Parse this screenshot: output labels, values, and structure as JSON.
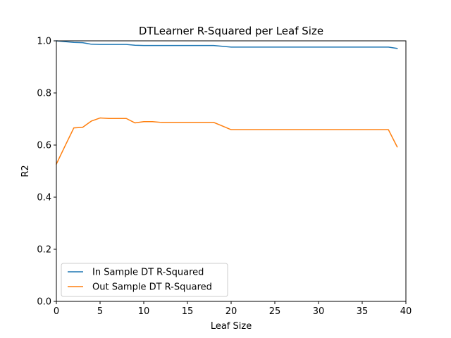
{
  "chart_data": {
    "type": "line",
    "title": "DTLearner R-Squared per Leaf Size",
    "xlabel": "Leaf Size",
    "ylabel": "R2",
    "xlim": [
      0,
      40
    ],
    "ylim": [
      0.0,
      1.0
    ],
    "xticks": [
      "0",
      "5",
      "10",
      "15",
      "20",
      "25",
      "30",
      "35",
      "40"
    ],
    "yticks": [
      "0.0",
      "0.2",
      "0.4",
      "0.6",
      "0.8",
      "1.0"
    ],
    "grid": false,
    "legend_position": "lower-left",
    "series": [
      {
        "name": "In Sample DT R-Squared",
        "color": "#1f77b4",
        "x": [
          0,
          1,
          2,
          3,
          4,
          5,
          6,
          7,
          8,
          9,
          10,
          11,
          12,
          13,
          14,
          15,
          16,
          17,
          18,
          19,
          20,
          21,
          22,
          23,
          24,
          25,
          26,
          27,
          28,
          29,
          30,
          31,
          32,
          33,
          34,
          35,
          36,
          37,
          38,
          39
        ],
        "values": [
          1.0,
          0.997,
          0.994,
          0.993,
          0.987,
          0.986,
          0.986,
          0.986,
          0.986,
          0.983,
          0.982,
          0.982,
          0.982,
          0.982,
          0.982,
          0.982,
          0.982,
          0.982,
          0.982,
          0.979,
          0.976,
          0.976,
          0.976,
          0.976,
          0.976,
          0.976,
          0.976,
          0.976,
          0.976,
          0.976,
          0.976,
          0.976,
          0.976,
          0.976,
          0.976,
          0.976,
          0.976,
          0.976,
          0.976,
          0.971
        ]
      },
      {
        "name": "Out Sample DT R-Squared",
        "color": "#ff7f0e",
        "x": [
          0,
          1,
          2,
          3,
          4,
          5,
          6,
          7,
          8,
          9,
          10,
          11,
          12,
          13,
          14,
          15,
          16,
          17,
          18,
          19,
          20,
          21,
          22,
          23,
          24,
          25,
          26,
          27,
          28,
          29,
          30,
          31,
          32,
          33,
          34,
          35,
          36,
          37,
          38,
          39
        ],
        "values": [
          0.527,
          0.597,
          0.666,
          0.668,
          0.692,
          0.704,
          0.702,
          0.702,
          0.702,
          0.685,
          0.69,
          0.69,
          0.687,
          0.687,
          0.687,
          0.687,
          0.687,
          0.687,
          0.687,
          0.673,
          0.659,
          0.659,
          0.659,
          0.659,
          0.659,
          0.659,
          0.659,
          0.659,
          0.659,
          0.659,
          0.659,
          0.659,
          0.659,
          0.659,
          0.659,
          0.659,
          0.659,
          0.659,
          0.659,
          0.593
        ]
      }
    ]
  }
}
